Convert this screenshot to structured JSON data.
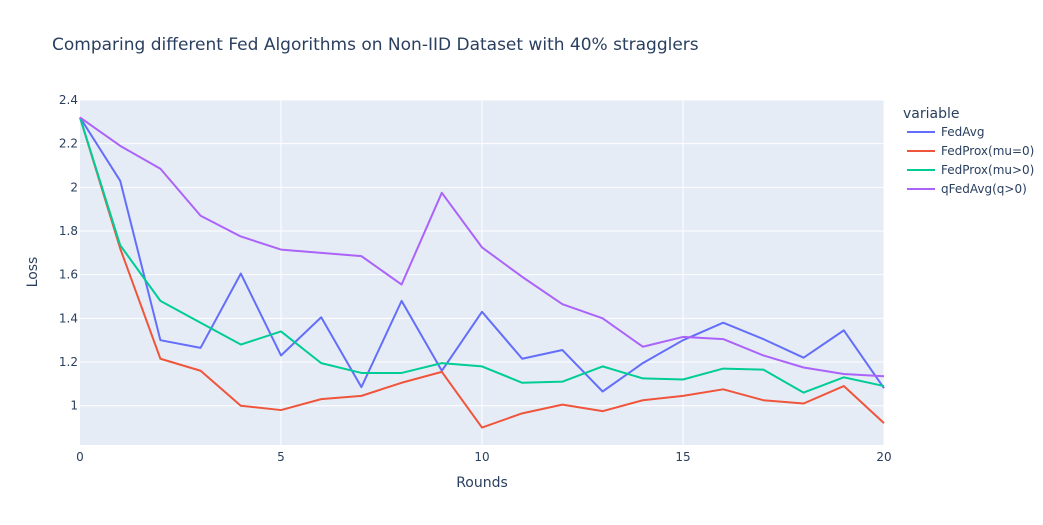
{
  "chart_data": {
    "type": "line",
    "title": "Comparing different Fed Algorithms on Non-IID Dataset with 40% stragglers",
    "xlabel": "Rounds",
    "ylabel": "Loss",
    "xlim": [
      0,
      20
    ],
    "ylim": [
      0.82,
      2.4
    ],
    "xticks": [
      0,
      5,
      10,
      15,
      20
    ],
    "xtick_labels": [
      "0",
      "5",
      "10",
      "15",
      "20"
    ],
    "yticks": [
      1,
      1.2,
      1.4,
      1.6,
      1.8,
      2,
      2.2,
      2.4
    ],
    "ytick_labels": [
      "1",
      "1.2",
      "1.4",
      "1.6",
      "1.8",
      "2",
      "2.2",
      "2.4"
    ],
    "grid": true,
    "legend_title": "variable",
    "legend_position": "right",
    "x": [
      0,
      1,
      2,
      3,
      4,
      5,
      6,
      7,
      8,
      9,
      10,
      11,
      12,
      13,
      14,
      15,
      16,
      17,
      18,
      19,
      20
    ],
    "series": [
      {
        "name": "FedAvg",
        "color": "#636efa",
        "values": [
          2.32,
          2.03,
          1.3,
          1.265,
          1.605,
          1.23,
          1.405,
          1.085,
          1.48,
          1.16,
          1.43,
          1.215,
          1.255,
          1.065,
          1.195,
          1.3,
          1.38,
          1.305,
          1.22,
          1.345,
          1.08
        ]
      },
      {
        "name": "FedProx(mu=0)",
        "color": "#ef553b",
        "values": [
          2.32,
          1.72,
          1.215,
          1.16,
          1.0,
          0.98,
          1.03,
          1.045,
          1.105,
          1.155,
          0.9,
          0.965,
          1.005,
          0.975,
          1.025,
          1.045,
          1.075,
          1.025,
          1.01,
          1.09,
          0.92
        ]
      },
      {
        "name": "FedProx(mu>0)",
        "color": "#00cc96",
        "values": [
          2.32,
          1.735,
          1.48,
          1.38,
          1.28,
          1.34,
          1.195,
          1.15,
          1.15,
          1.195,
          1.18,
          1.105,
          1.11,
          1.18,
          1.125,
          1.12,
          1.17,
          1.165,
          1.06,
          1.13,
          1.09
        ]
      },
      {
        "name": "qFedAvg(q>0)",
        "color": "#ab63fa",
        "values": [
          2.32,
          2.19,
          2.085,
          1.87,
          1.775,
          1.715,
          1.7,
          1.685,
          1.555,
          1.975,
          1.725,
          1.59,
          1.465,
          1.4,
          1.27,
          1.315,
          1.305,
          1.23,
          1.175,
          1.145,
          1.135
        ]
      }
    ]
  },
  "colors": {
    "plot_background": "#e5ecf6",
    "grid": "#ffffff",
    "text": "#2a3f5f"
  }
}
